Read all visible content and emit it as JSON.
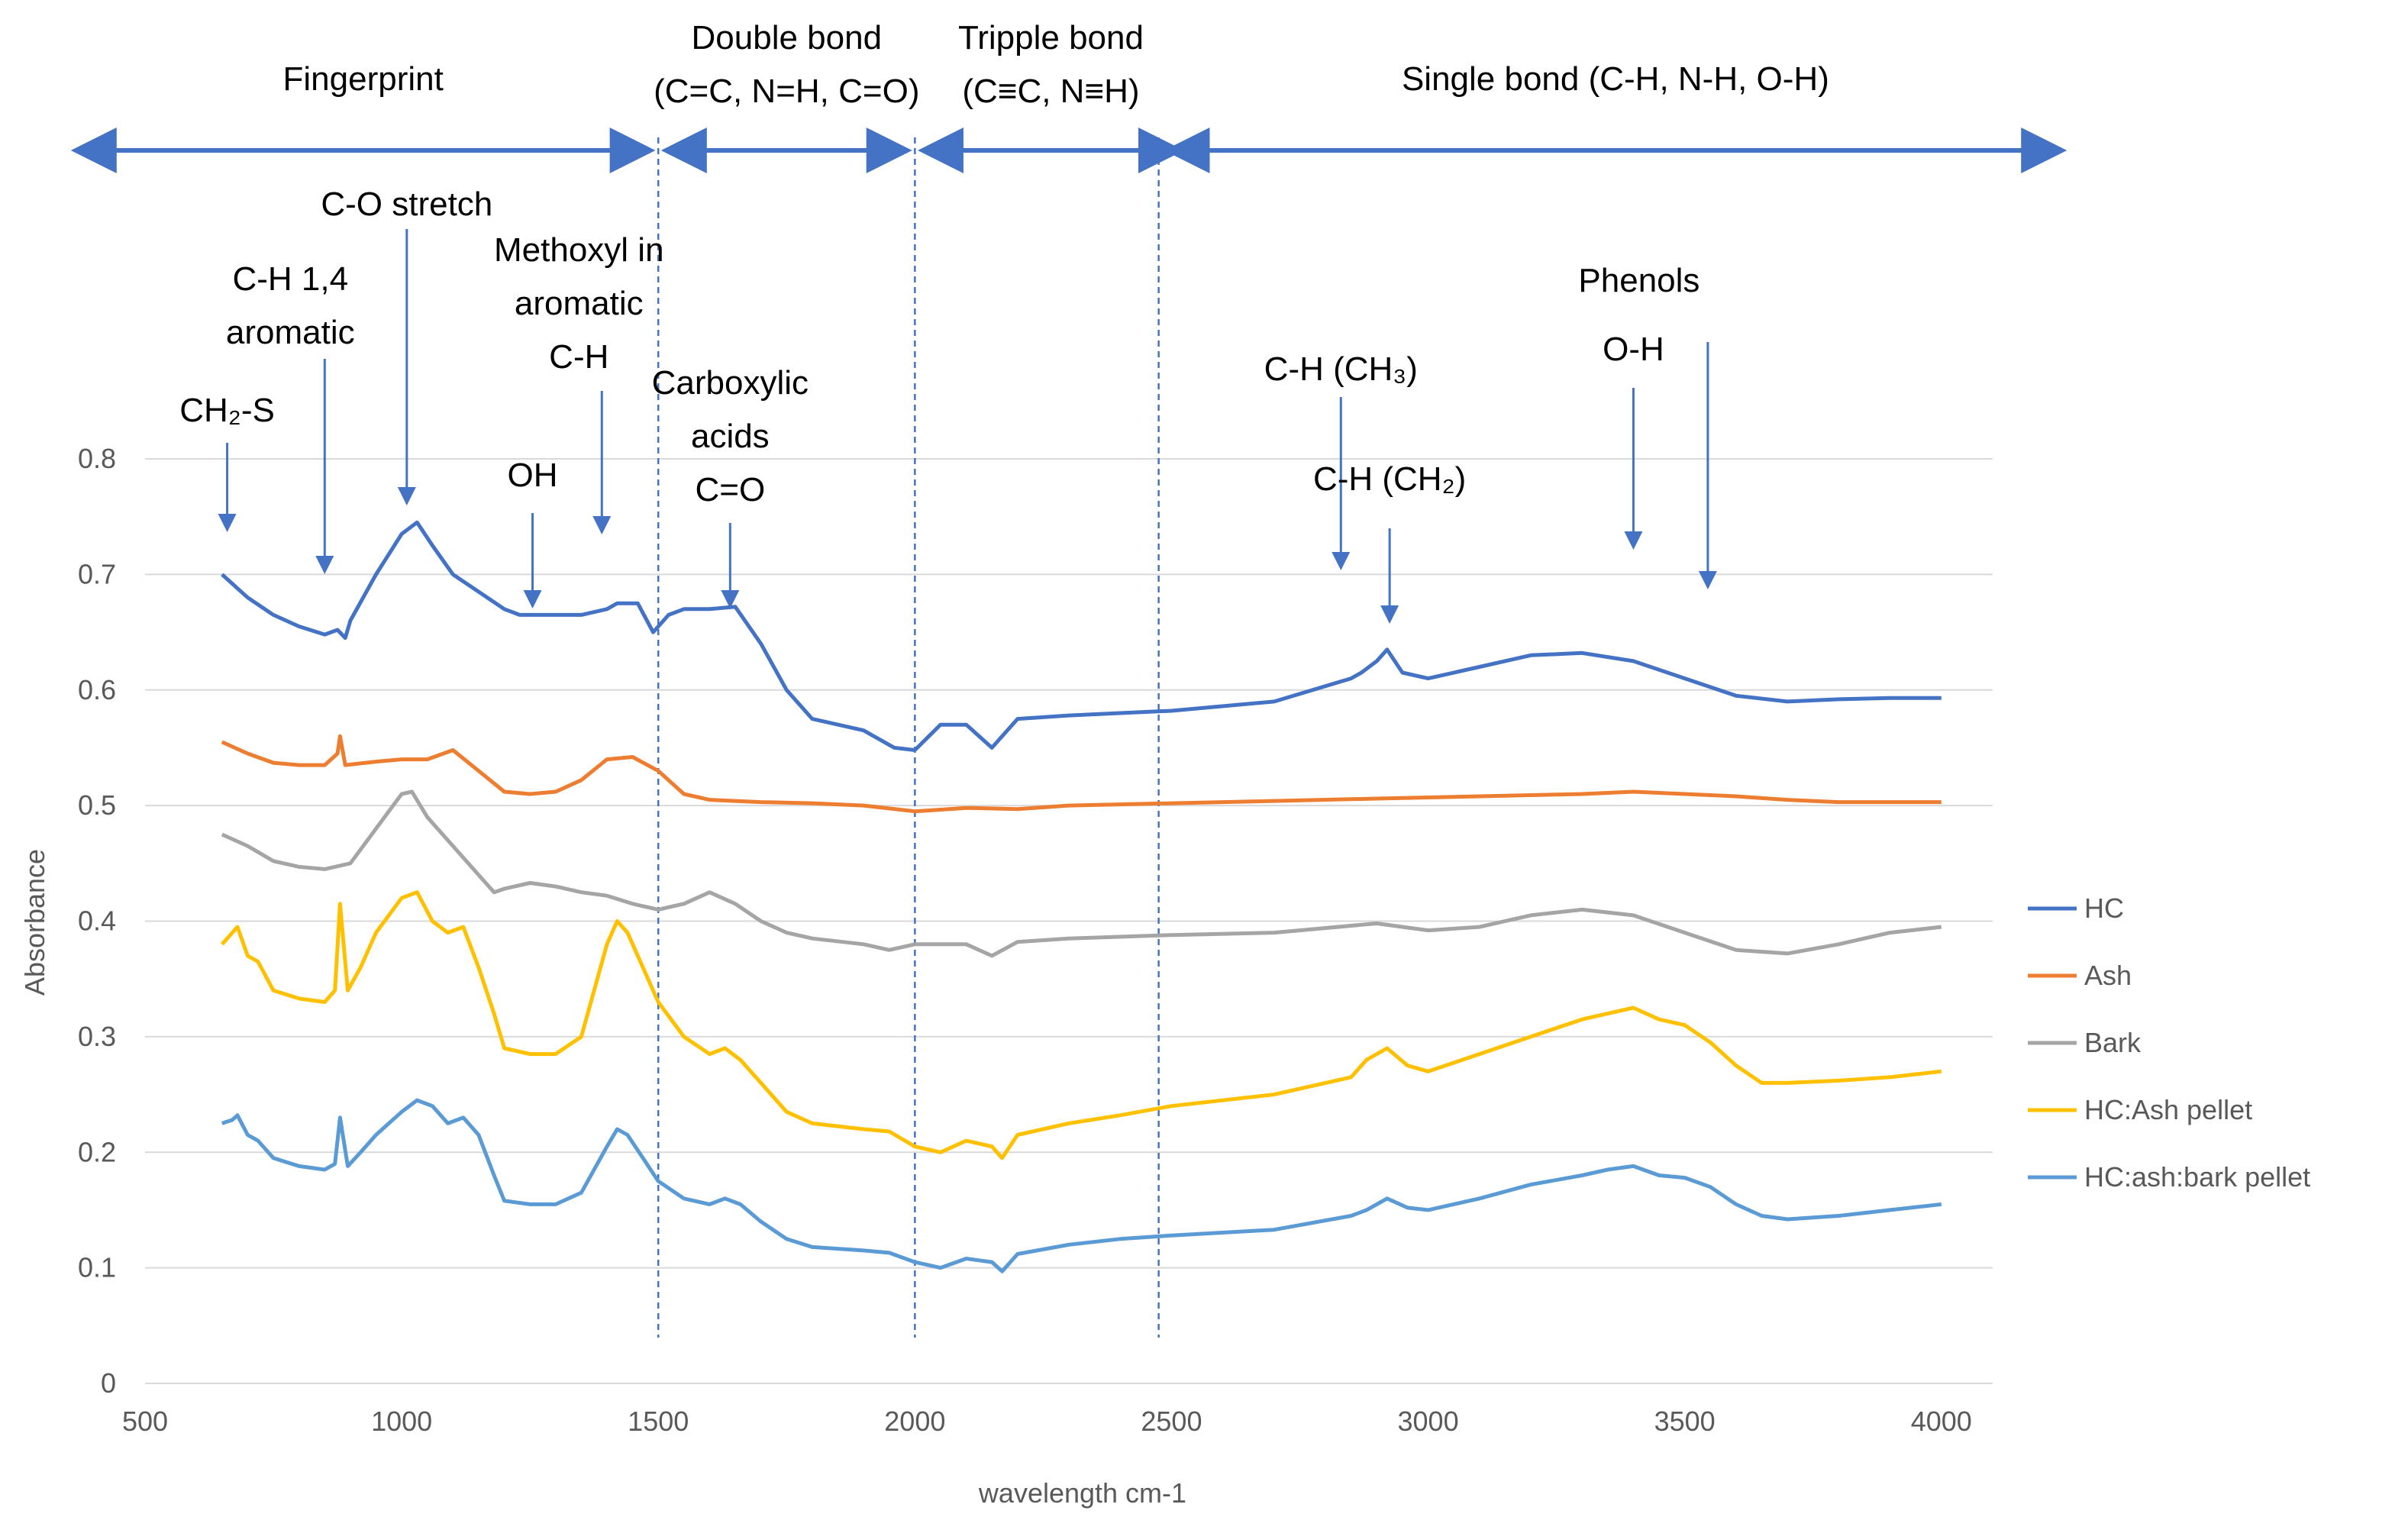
{
  "chart_data": {
    "type": "line",
    "title": "",
    "xlabel": "wavelength cm-1",
    "ylabel": "Absorbance",
    "xlim": [
      500,
      4100
    ],
    "ylim": [
      0,
      0.8
    ],
    "xticks": [
      "500",
      "1000",
      "1500",
      "2000",
      "2500",
      "3000",
      "3500",
      "4000"
    ],
    "xtick_values": [
      500,
      1000,
      1500,
      2000,
      2500,
      3000,
      3500,
      4000
    ],
    "yticks": [
      "0",
      "0.1",
      "0.2",
      "0.3",
      "0.4",
      "0.5",
      "0.6",
      "0.7",
      "0.8"
    ],
    "ytick_values": [
      0,
      0.1,
      0.2,
      0.3,
      0.4,
      0.5,
      0.6,
      0.7,
      0.8
    ],
    "grid": "horizontal",
    "legend_position": "right",
    "series": [
      {
        "name": "HC",
        "color": "#4472C4",
        "x": [
          650,
          700,
          750,
          800,
          850,
          875,
          890,
          900,
          950,
          1000,
          1030,
          1060,
          1100,
          1150,
          1200,
          1230,
          1300,
          1350,
          1400,
          1420,
          1460,
          1490,
          1520,
          1550,
          1600,
          1650,
          1700,
          1750,
          1800,
          1900,
          1960,
          2000,
          2050,
          2100,
          2150,
          2200,
          2300,
          2400,
          2500,
          2700,
          2850,
          2870,
          2900,
          2920,
          2950,
          3000,
          3100,
          3200,
          3300,
          3400,
          3500,
          3600,
          3700,
          3800,
          3900,
          4000
        ],
        "y": [
          0.7,
          0.68,
          0.665,
          0.655,
          0.648,
          0.652,
          0.645,
          0.66,
          0.7,
          0.735,
          0.745,
          0.725,
          0.7,
          0.685,
          0.67,
          0.665,
          0.665,
          0.665,
          0.67,
          0.675,
          0.675,
          0.65,
          0.665,
          0.67,
          0.67,
          0.672,
          0.64,
          0.6,
          0.575,
          0.565,
          0.55,
          0.548,
          0.57,
          0.57,
          0.55,
          0.575,
          0.578,
          0.58,
          0.582,
          0.59,
          0.61,
          0.615,
          0.625,
          0.635,
          0.615,
          0.61,
          0.62,
          0.63,
          0.632,
          0.625,
          0.61,
          0.595,
          0.59,
          0.592,
          0.593,
          0.593
        ]
      },
      {
        "name": "Ash",
        "color": "#ED7D31",
        "x": [
          650,
          700,
          750,
          800,
          850,
          875,
          880,
          890,
          950,
          1000,
          1050,
          1100,
          1150,
          1200,
          1250,
          1300,
          1350,
          1400,
          1450,
          1500,
          1550,
          1600,
          1700,
          1800,
          1900,
          2000,
          2100,
          2200,
          2300,
          2500,
          2700,
          2900,
          3100,
          3300,
          3400,
          3500,
          3600,
          3700,
          3800,
          3900,
          4000
        ],
        "y": [
          0.555,
          0.545,
          0.537,
          0.535,
          0.535,
          0.545,
          0.56,
          0.535,
          0.538,
          0.54,
          0.54,
          0.548,
          0.53,
          0.512,
          0.51,
          0.512,
          0.522,
          0.54,
          0.542,
          0.53,
          0.51,
          0.505,
          0.503,
          0.502,
          0.5,
          0.495,
          0.498,
          0.497,
          0.5,
          0.502,
          0.504,
          0.506,
          0.508,
          0.51,
          0.512,
          0.51,
          0.508,
          0.505,
          0.503,
          0.503,
          0.503
        ]
      },
      {
        "name": "Bark",
        "color": "#A5A5A5",
        "x": [
          650,
          700,
          750,
          800,
          850,
          900,
          950,
          1000,
          1020,
          1050,
          1100,
          1150,
          1180,
          1200,
          1250,
          1300,
          1350,
          1400,
          1450,
          1500,
          1550,
          1600,
          1650,
          1700,
          1750,
          1800,
          1900,
          1950,
          2000,
          2100,
          2150,
          2200,
          2300,
          2500,
          2700,
          2900,
          3000,
          3100,
          3200,
          3300,
          3400,
          3500,
          3600,
          3700,
          3800,
          3900,
          4000
        ],
        "y": [
          0.475,
          0.465,
          0.452,
          0.447,
          0.445,
          0.45,
          0.48,
          0.51,
          0.512,
          0.49,
          0.465,
          0.44,
          0.425,
          0.428,
          0.433,
          0.43,
          0.425,
          0.422,
          0.415,
          0.41,
          0.415,
          0.425,
          0.415,
          0.4,
          0.39,
          0.385,
          0.38,
          0.375,
          0.38,
          0.38,
          0.37,
          0.382,
          0.385,
          0.388,
          0.39,
          0.398,
          0.392,
          0.395,
          0.405,
          0.41,
          0.405,
          0.39,
          0.375,
          0.372,
          0.38,
          0.39,
          0.395
        ]
      },
      {
        "name": "HC:Ash pellet",
        "color": "#FFC000",
        "x": [
          650,
          670,
          680,
          700,
          720,
          750,
          800,
          850,
          870,
          880,
          895,
          920,
          950,
          1000,
          1030,
          1060,
          1090,
          1120,
          1150,
          1180,
          1200,
          1250,
          1300,
          1350,
          1400,
          1420,
          1440,
          1470,
          1500,
          1550,
          1600,
          1630,
          1660,
          1700,
          1750,
          1800,
          1900,
          1950,
          2000,
          2050,
          2100,
          2150,
          2170,
          2200,
          2300,
          2400,
          2500,
          2700,
          2850,
          2880,
          2920,
          2960,
          3000,
          3100,
          3200,
          3300,
          3350,
          3400,
          3450,
          3500,
          3550,
          3600,
          3650,
          3700,
          3800,
          3900,
          4000
        ],
        "y": [
          0.38,
          0.39,
          0.395,
          0.37,
          0.365,
          0.34,
          0.333,
          0.33,
          0.34,
          0.415,
          0.34,
          0.36,
          0.39,
          0.42,
          0.425,
          0.4,
          0.39,
          0.395,
          0.36,
          0.32,
          0.29,
          0.285,
          0.285,
          0.3,
          0.38,
          0.4,
          0.39,
          0.36,
          0.33,
          0.3,
          0.285,
          0.29,
          0.28,
          0.26,
          0.235,
          0.225,
          0.22,
          0.218,
          0.205,
          0.2,
          0.21,
          0.205,
          0.195,
          0.215,
          0.225,
          0.232,
          0.24,
          0.25,
          0.265,
          0.28,
          0.29,
          0.275,
          0.27,
          0.285,
          0.3,
          0.315,
          0.32,
          0.325,
          0.315,
          0.31,
          0.295,
          0.275,
          0.26,
          0.26,
          0.262,
          0.265,
          0.27
        ]
      },
      {
        "name": "HC:ash:bark pellet",
        "color": "#5B9BD5",
        "x": [
          650,
          670,
          680,
          700,
          720,
          750,
          800,
          850,
          870,
          880,
          895,
          920,
          950,
          1000,
          1030,
          1060,
          1090,
          1120,
          1150,
          1180,
          1200,
          1250,
          1300,
          1350,
          1400,
          1420,
          1440,
          1470,
          1500,
          1550,
          1600,
          1630,
          1660,
          1700,
          1750,
          1800,
          1900,
          1950,
          2000,
          2050,
          2100,
          2150,
          2170,
          2200,
          2300,
          2400,
          2500,
          2700,
          2850,
          2880,
          2920,
          2960,
          3000,
          3100,
          3200,
          3300,
          3350,
          3400,
          3450,
          3500,
          3550,
          3600,
          3650,
          3700,
          3800,
          3900,
          4000
        ],
        "y": [
          0.225,
          0.228,
          0.232,
          0.215,
          0.21,
          0.195,
          0.188,
          0.185,
          0.19,
          0.23,
          0.188,
          0.2,
          0.215,
          0.235,
          0.245,
          0.24,
          0.225,
          0.23,
          0.215,
          0.18,
          0.158,
          0.155,
          0.155,
          0.165,
          0.205,
          0.22,
          0.215,
          0.195,
          0.175,
          0.16,
          0.155,
          0.16,
          0.155,
          0.14,
          0.125,
          0.118,
          0.115,
          0.113,
          0.105,
          0.1,
          0.108,
          0.105,
          0.097,
          0.112,
          0.12,
          0.125,
          0.128,
          0.133,
          0.145,
          0.15,
          0.16,
          0.152,
          0.15,
          0.16,
          0.172,
          0.18,
          0.185,
          0.188,
          0.18,
          0.178,
          0.17,
          0.155,
          0.145,
          0.142,
          0.145,
          0.15,
          0.155
        ]
      }
    ],
    "regions": [
      {
        "label": "Fingerprint",
        "x_from": 400,
        "x_to": 1450
      },
      {
        "label_line1": "Double bond",
        "label_line2": "(C=C, N=H, C=O)",
        "x_from": 1550,
        "x_to": 1950
      },
      {
        "label_line1": "Tripple bond",
        "label_line2": "(C≡C, N≡H)",
        "x_from": 2050,
        "x_to": 2480
      },
      {
        "label": "Single bond (C-H, N-H, O-H)",
        "x_from": 2530,
        "x_to": 4200
      }
    ],
    "dividers": [
      1500,
      2000,
      2475
    ],
    "annotations": [
      {
        "id": "ch2s",
        "text": "CH₂-S",
        "x": 660
      },
      {
        "id": "ch14",
        "line1": "C-H 1,4",
        "line2": "aromatic",
        "x": 850
      },
      {
        "id": "costretch",
        "text": "C-O stretch",
        "x": 1010
      },
      {
        "id": "oh",
        "text": "OH",
        "x": 1255
      },
      {
        "id": "methoxyl",
        "line1": "Methoxyl in",
        "line2": "aromatic",
        "line3": "C-H",
        "x": 1390
      },
      {
        "id": "carboxylic",
        "line1": "Carboxylic",
        "line2": "acids",
        "line3": "C=O",
        "x": 1640
      },
      {
        "id": "ch3",
        "text": "C-H (CH₃)",
        "x": 2830
      },
      {
        "id": "ch2",
        "text": "C-H (CH₂)",
        "x": 2925
      },
      {
        "id": "oh2",
        "text": "O-H",
        "x": 3400
      },
      {
        "id": "phenols",
        "text": "Phenols",
        "x": 3545
      }
    ]
  }
}
